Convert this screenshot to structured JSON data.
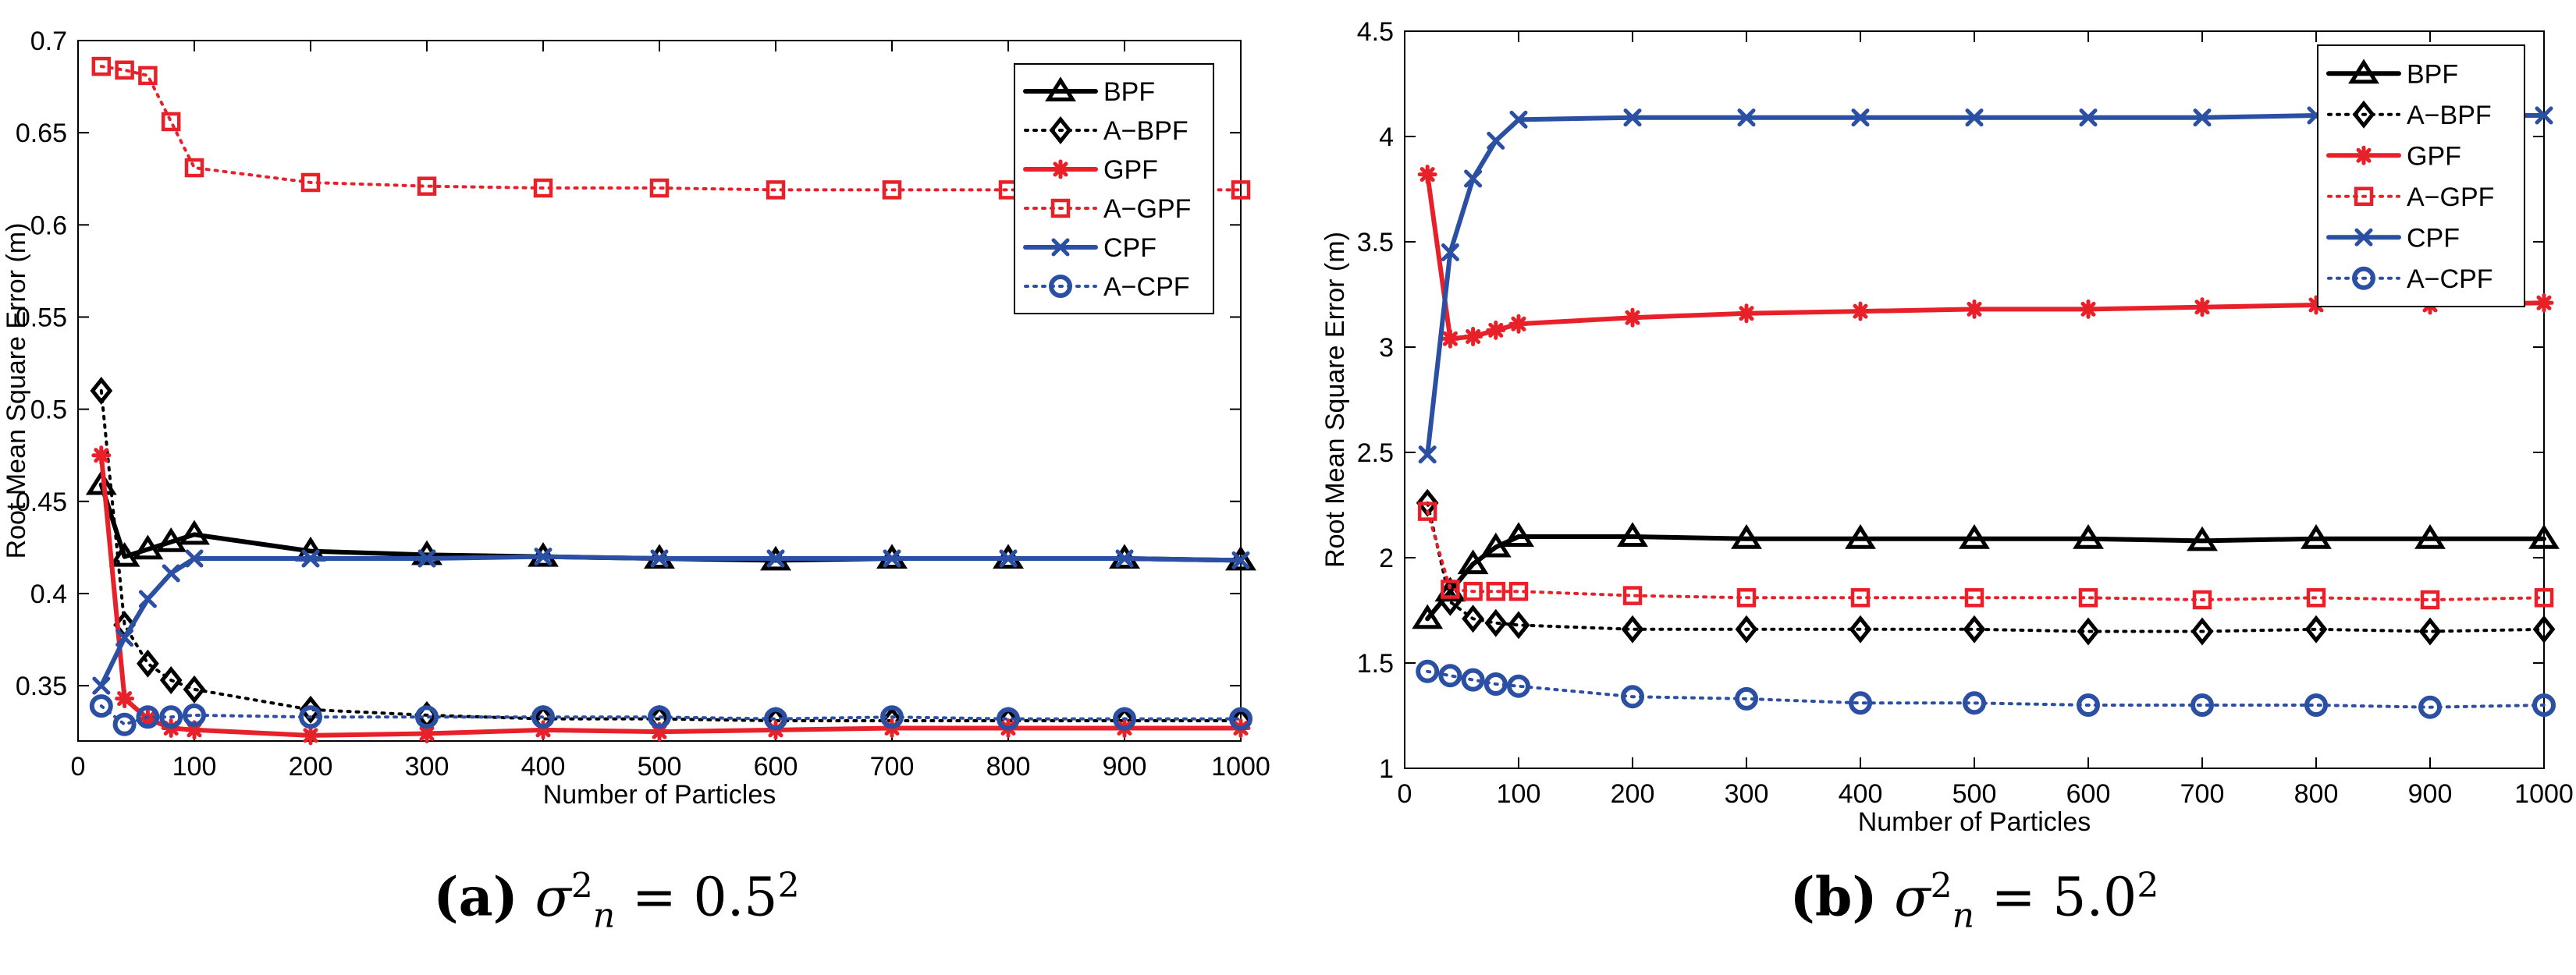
{
  "chart_data": [
    {
      "type": "line",
      "panel_label": "(a)",
      "caption": {
        "lab": "(a)",
        "sigma": "σ",
        "sub": "n",
        "sup_left": "2",
        "eq": " = 0.5",
        "sup_right": "2"
      },
      "xlabel": "Number of Particles",
      "ylabel": "Root Mean Square Error (m)",
      "xlim": [
        0,
        1000
      ],
      "ylim": [
        0.32,
        0.7
      ],
      "xticks": [
        0,
        100,
        200,
        300,
        400,
        500,
        600,
        700,
        800,
        900,
        1000
      ],
      "yticks": [
        0.35,
        0.4,
        0.45,
        0.5,
        0.55,
        0.6,
        0.65,
        0.7
      ],
      "ytick_labels": [
        "0.35",
        "0.4",
        "0.45",
        "0.5",
        "0.55",
        "0.6",
        "0.65",
        "0.7"
      ],
      "legend_position": "top-right",
      "x": [
        20,
        40,
        60,
        80,
        100,
        200,
        300,
        400,
        500,
        600,
        700,
        800,
        900,
        1000
      ],
      "series": [
        {
          "name": "BPF",
          "color": "#000000",
          "dash": "solid",
          "marker": "triangle",
          "values": [
            0.459,
            0.42,
            0.424,
            0.428,
            0.432,
            0.423,
            0.421,
            0.42,
            0.419,
            0.418,
            0.419,
            0.419,
            0.419,
            0.418
          ]
        },
        {
          "name": "A−BPF",
          "color": "#000000",
          "dash": "dotted",
          "marker": "diamond",
          "values": [
            0.51,
            0.383,
            0.362,
            0.353,
            0.348,
            0.337,
            0.334,
            0.332,
            0.332,
            0.331,
            0.331,
            0.331,
            0.331,
            0.331
          ]
        },
        {
          "name": "GPF",
          "color": "#e8202a",
          "dash": "solid",
          "marker": "star",
          "values": [
            0.475,
            0.343,
            0.332,
            0.327,
            0.326,
            0.323,
            0.324,
            0.326,
            0.325,
            0.326,
            0.327,
            0.327,
            0.327,
            0.327
          ]
        },
        {
          "name": "A−GPF",
          "color": "#e8202a",
          "dash": "dotted",
          "marker": "square",
          "values": [
            0.686,
            0.684,
            0.681,
            0.656,
            0.631,
            0.623,
            0.621,
            0.62,
            0.62,
            0.619,
            0.619,
            0.619,
            0.619,
            0.619
          ]
        },
        {
          "name": "CPF",
          "color": "#2b4fa3",
          "dash": "solid",
          "marker": "x",
          "values": [
            0.35,
            0.376,
            0.397,
            0.411,
            0.419,
            0.419,
            0.419,
            0.42,
            0.419,
            0.419,
            0.419,
            0.419,
            0.419,
            0.418
          ]
        },
        {
          "name": "A−CPF",
          "color": "#2b4fa3",
          "dash": "dotted",
          "marker": "circle",
          "values": [
            0.339,
            0.329,
            0.333,
            0.333,
            0.334,
            0.333,
            0.333,
            0.333,
            0.333,
            0.332,
            0.333,
            0.332,
            0.332,
            0.332
          ]
        }
      ]
    },
    {
      "type": "line",
      "panel_label": "(b)",
      "caption": {
        "lab": "(b)",
        "sigma": "σ",
        "sub": "n",
        "sup_left": "2",
        "eq": " = 5.0",
        "sup_right": "2"
      },
      "xlabel": "Number of Particles",
      "ylabel": "Root Mean Square Error (m)",
      "xlim": [
        0,
        1000
      ],
      "ylim": [
        1,
        4.5
      ],
      "xticks": [
        0,
        100,
        200,
        300,
        400,
        500,
        600,
        700,
        800,
        900,
        1000
      ],
      "yticks": [
        1,
        1.5,
        2,
        2.5,
        3,
        3.5,
        4,
        4.5
      ],
      "ytick_labels": [
        "1",
        "1.5",
        "2",
        "2.5",
        "3",
        "3.5",
        "4",
        "4.5"
      ],
      "legend_position": "top-right",
      "x": [
        20,
        40,
        60,
        80,
        100,
        200,
        300,
        400,
        500,
        600,
        700,
        800,
        900,
        1000
      ],
      "series": [
        {
          "name": "BPF",
          "color": "#000000",
          "dash": "solid",
          "marker": "triangle",
          "values": [
            1.71,
            1.84,
            1.97,
            2.05,
            2.1,
            2.1,
            2.09,
            2.09,
            2.09,
            2.09,
            2.08,
            2.09,
            2.09,
            2.09
          ]
        },
        {
          "name": "A−BPF",
          "color": "#000000",
          "dash": "dotted",
          "marker": "diamond",
          "values": [
            2.26,
            1.79,
            1.71,
            1.69,
            1.68,
            1.66,
            1.66,
            1.66,
            1.66,
            1.65,
            1.65,
            1.66,
            1.65,
            1.66
          ]
        },
        {
          "name": "GPF",
          "color": "#e8202a",
          "dash": "solid",
          "marker": "star",
          "values": [
            3.82,
            3.04,
            3.05,
            3.08,
            3.11,
            3.14,
            3.16,
            3.17,
            3.18,
            3.18,
            3.19,
            3.2,
            3.2,
            3.21
          ]
        },
        {
          "name": "A−GPF",
          "color": "#e8202a",
          "dash": "dotted",
          "marker": "square",
          "values": [
            2.22,
            1.85,
            1.84,
            1.84,
            1.84,
            1.82,
            1.81,
            1.81,
            1.81,
            1.81,
            1.8,
            1.81,
            1.8,
            1.81
          ]
        },
        {
          "name": "CPF",
          "color": "#2b4fa3",
          "dash": "solid",
          "marker": "x",
          "values": [
            2.49,
            3.45,
            3.8,
            3.98,
            4.08,
            4.09,
            4.09,
            4.09,
            4.09,
            4.09,
            4.09,
            4.1,
            4.1,
            4.1
          ]
        },
        {
          "name": "A−CPF",
          "color": "#2b4fa3",
          "dash": "dotted",
          "marker": "circle",
          "values": [
            1.46,
            1.44,
            1.42,
            1.4,
            1.39,
            1.34,
            1.33,
            1.31,
            1.31,
            1.3,
            1.3,
            1.3,
            1.29,
            1.3
          ]
        }
      ]
    }
  ]
}
